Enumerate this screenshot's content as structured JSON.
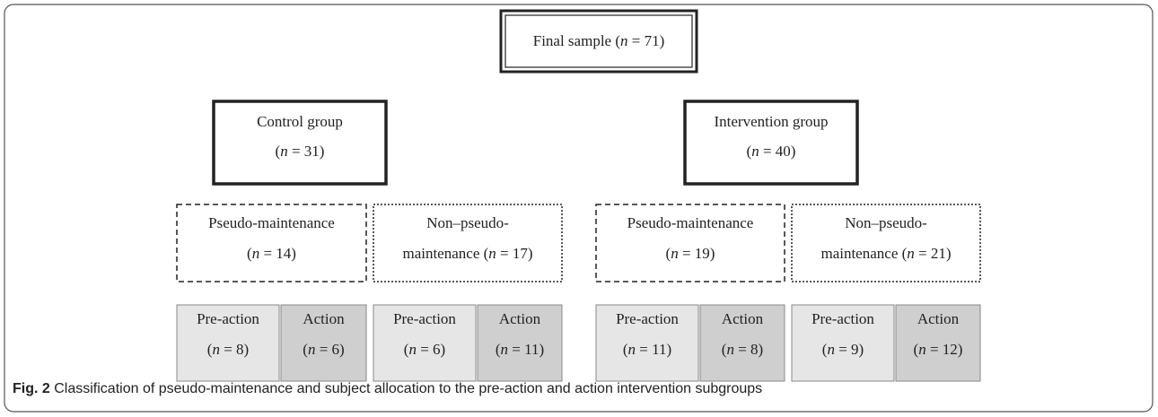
{
  "nodes": [
    {
      "lines": [
        [
          "Final sample (",
          "n",
          " = 71)"
        ]
      ]
    },
    {
      "lines": [
        [
          "Control group"
        ],
        [
          "(",
          "n",
          " = 31)"
        ]
      ]
    },
    {
      "lines": [
        [
          "Intervention group"
        ],
        [
          "(",
          "n",
          " = 40)"
        ]
      ]
    },
    {
      "lines": [
        [
          "Pseudo-maintenance"
        ],
        [
          "(",
          "n",
          " = 14)"
        ]
      ]
    },
    {
      "lines": [
        [
          "Non–pseudo-"
        ],
        [
          "maintenance (",
          "n",
          " = 17)"
        ]
      ]
    },
    {
      "lines": [
        [
          "Pseudo-maintenance"
        ],
        [
          "(",
          "n",
          " = 19)"
        ]
      ]
    },
    {
      "lines": [
        [
          "Non–pseudo-"
        ],
        [
          "maintenance (",
          "n",
          " = 21)"
        ]
      ]
    },
    {
      "lines": [
        [
          "Pre-action"
        ],
        [
          "(",
          "n",
          " = 8)"
        ]
      ]
    },
    {
      "lines": [
        [
          "Action"
        ],
        [
          "(",
          "n",
          " = 6)"
        ]
      ]
    },
    {
      "lines": [
        [
          "Pre-action"
        ],
        [
          "(",
          "n",
          " = 6)"
        ]
      ]
    },
    {
      "lines": [
        [
          "Action"
        ],
        [
          "(",
          "n",
          " = 11)"
        ]
      ]
    },
    {
      "lines": [
        [
          "Pre-action"
        ],
        [
          "(",
          "n",
          " = 11)"
        ]
      ]
    },
    {
      "lines": [
        [
          "Action"
        ],
        [
          "(",
          "n",
          " = 8)"
        ]
      ]
    },
    {
      "lines": [
        [
          "Pre-action"
        ],
        [
          "(",
          "n",
          " = 9)"
        ]
      ]
    },
    {
      "lines": [
        [
          "Action"
        ],
        [
          "(",
          "n",
          " = 12)"
        ]
      ]
    }
  ],
  "caption": {
    "label": "Fig. 2",
    "text": "Classification of pseudo-maintenance and subject allocation to the pre-action and action intervention subgroups"
  }
}
